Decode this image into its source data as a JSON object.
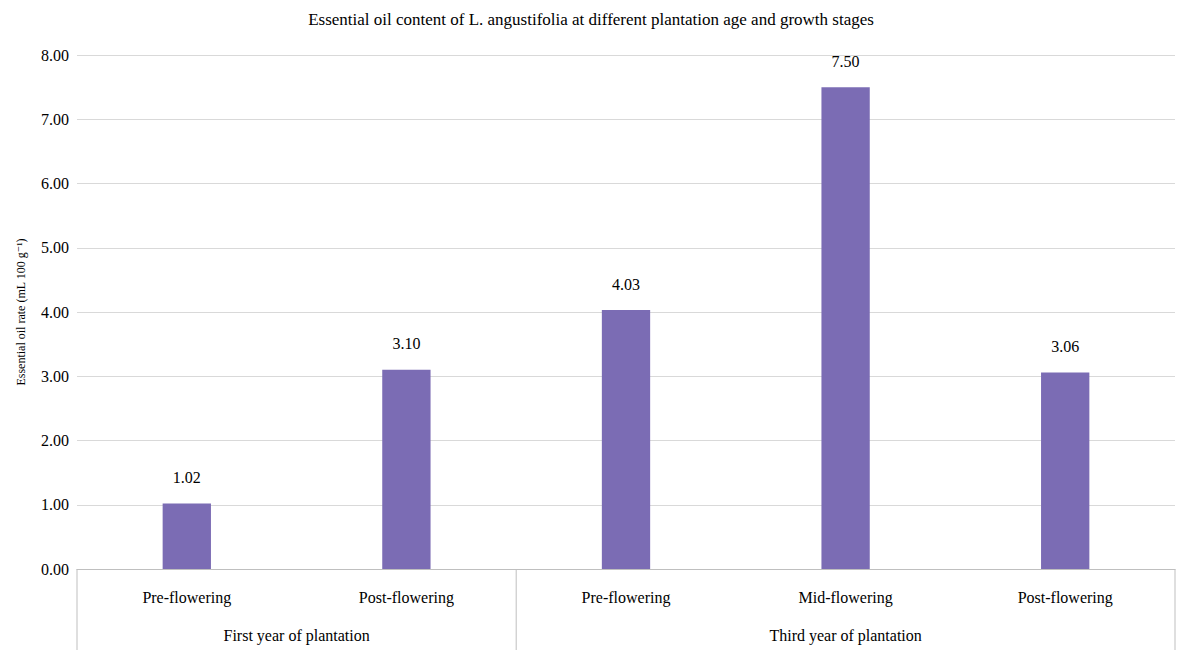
{
  "chart_data": {
    "type": "bar",
    "title": "Essential oil content of L. angustifolia at different plantation age and growth stages",
    "y_label": "Essential oil rate (mL 100 g⁻¹)",
    "categories": [
      "Pre-flowering",
      "Post-flowering",
      "Pre-flowering",
      "Mid-flowering",
      "Post-flowering"
    ],
    "groups": [
      {
        "label": "First year of plantation",
        "size": 2
      },
      {
        "label": "Third year of plantation",
        "size": 3
      }
    ],
    "values": [
      1.02,
      3.1,
      4.03,
      7.5,
      3.06
    ],
    "value_labels": [
      "1.02",
      "3.10",
      "4.03",
      "7.50",
      "3.06"
    ],
    "color": "#7b6cb4",
    "ylim": [
      0,
      8
    ],
    "yticks": [
      {
        "value": 0,
        "label": "0.00"
      },
      {
        "value": 1,
        "label": "1.00"
      },
      {
        "value": 2,
        "label": "2.00"
      },
      {
        "value": 3,
        "label": "3.00"
      },
      {
        "value": 4,
        "label": "4.00"
      },
      {
        "value": 5,
        "label": "5.00"
      },
      {
        "value": 6,
        "label": "6.00"
      },
      {
        "value": 7,
        "label": "7.00"
      },
      {
        "value": 8,
        "label": "8.00"
      }
    ],
    "grid": true,
    "data_labels": true
  }
}
